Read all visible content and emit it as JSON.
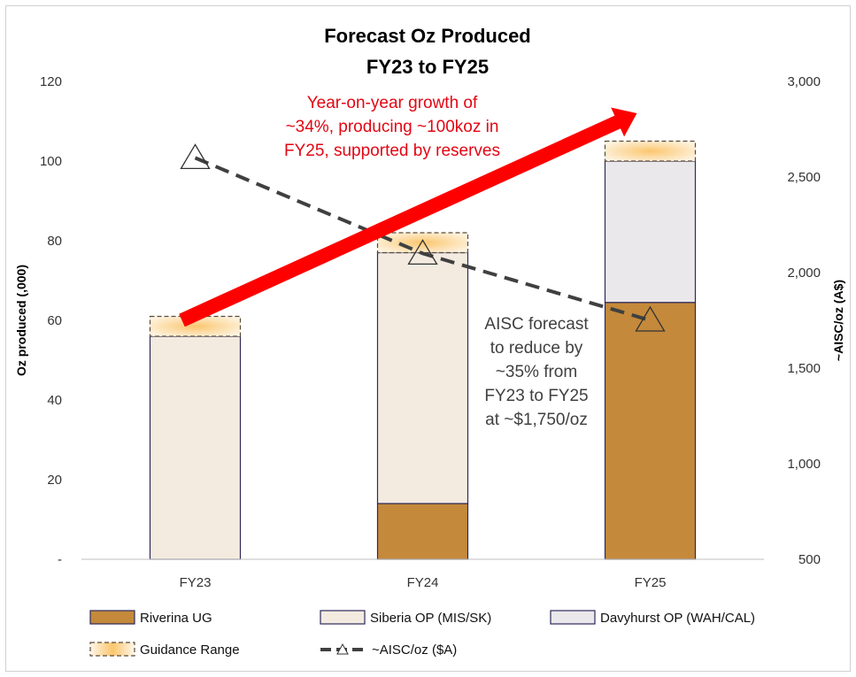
{
  "chart_data": {
    "type": "bar",
    "stacked": true,
    "title": [
      "Forecast Oz Produced",
      "FY23 to FY25"
    ],
    "ylabel": "Oz produced (,000)",
    "y2label": "~AISC/oz (A$)",
    "categories": [
      "FY23",
      "FY24",
      "FY25"
    ],
    "ylim": [
      0,
      120
    ],
    "y_ticks": [
      0,
      20,
      40,
      60,
      80,
      100,
      120
    ],
    "y_tick_labels": [
      "-",
      "20",
      "40",
      "60",
      "80",
      "100",
      "120"
    ],
    "y2lim": [
      500,
      3000
    ],
    "y2_ticks": [
      500,
      1000,
      1500,
      2000,
      2500,
      3000
    ],
    "y2_tick_labels": [
      "500",
      "1,000",
      "1,500",
      "2,000",
      "2,500",
      "3,000"
    ],
    "series": [
      {
        "name": "Riverina UG",
        "values": [
          0,
          14,
          64.5
        ],
        "color": "#c4893b"
      },
      {
        "name": "Siberia OP (MIS/SK)",
        "values": [
          56,
          63,
          0
        ],
        "color": "#f3ebe0"
      },
      {
        "name": "Davyhurst OP (WAH/CAL)",
        "values": [
          0,
          0,
          35.5
        ],
        "color": "#ebe8eb"
      }
    ],
    "guidance_range": {
      "name": "Guidance Range",
      "low": [
        56,
        77,
        100
      ],
      "high": [
        61,
        82,
        105
      ],
      "color": "#fbd089"
    },
    "line_series": {
      "name": "~AISC/oz ($A)",
      "axis": "right",
      "values": [
        2600,
        2100,
        1750
      ],
      "color": "#404040",
      "style": "dashed",
      "marker": "triangle"
    },
    "annotations": [
      {
        "text": [
          "Year-on-year growth of",
          "~34%, producing ~100koz in",
          "FY25, supported by reserves"
        ],
        "color": "#e30613"
      },
      {
        "text": [
          "AISC forecast",
          "to reduce by",
          "~35% from",
          "FY23 to FY25",
          "at ~$1,750/oz"
        ],
        "color": "#404040"
      }
    ],
    "growth_arrow": {
      "from_value": 60,
      "to_value": 112,
      "from_category": "FY23",
      "to_category": "FY25",
      "color": "#ff0000"
    },
    "legend": {
      "position": "bottom"
    },
    "grid": false
  }
}
